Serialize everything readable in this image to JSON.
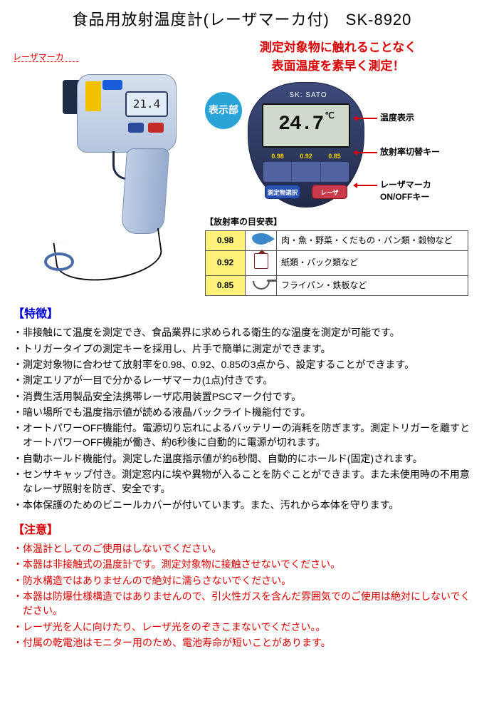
{
  "title": "食品用放射温度計(レーザマーカ付)　SK-8920",
  "laser_label": "レーザマーカ",
  "gun_lcd": "21.4",
  "headline": "測定対象物に触れることなく\n表面温度を素早く測定！",
  "badge": "表示部",
  "brand": "SK: SATO",
  "lcd_value": "24.7",
  "lcd_unit": "℃",
  "em_scale": [
    "0.98",
    "0.92",
    "0.85"
  ],
  "disp_btn_blue": "測定物選択",
  "disp_btn_red": "レーザ",
  "callouts": {
    "c1": "温度表示",
    "c2": "放射率切替キー",
    "c3": "レーザマーカ\nON/OFFキー"
  },
  "etable_title": "【放射率の目安表】",
  "etable_rows": [
    {
      "val": "0.98",
      "desc": "肉・魚・野菜・くだもの・パン類・穀物など"
    },
    {
      "val": "0.92",
      "desc": "紙類・パック類など"
    },
    {
      "val": "0.85",
      "desc": "フライパン・鉄板など"
    }
  ],
  "features_heading": "【特徴】",
  "features": [
    "非接触にて温度を測定でき、食品業界に求められる衛生的な温度を測定が可能です。",
    "トリガータイプの測定キーを採用し、片手で簡単に測定ができます。",
    "測定対象物に合わせて放射率を0.98、0.92、0.85の3点から、設定することができます。",
    "測定エリアが一目で分かるレーザマーカ(1点)付きです。",
    "消費生活用製品安全法携帯レーザ応用装置PSCマーク付です。",
    "暗い場所でも温度指示値が読める液晶バックライト機能付です。",
    "オートパワーOFF機能付。電源切り忘れによるバッテリーの消耗を防ぎます。測定トリガーを離すとオートパワーOFF機能が働き、約6秒後に自動的に電源が切れます。",
    "自動ホールド機能付。測定した温度指示値が約6秒間、自動的にホールド(固定)されます。",
    "センサキャップ付き。測定窓内に埃や異物が入ることを防ぐことができます。また未使用時の不用意なレーザ照射を防ぎ、安全です。",
    "本体保護のためのビニールカバーが付いています。また、汚れから本体を守ります。"
  ],
  "cautions_heading": "【注意】",
  "cautions": [
    "体温計としてのご使用はしないでください。",
    "本器は非接触式の温度計です。測定対象物に接触させないでください。",
    "防水構造ではありませんので絶対に濡らさないでください。",
    "本器は防爆仕様構造ではありませんので、引火性ガスを含んだ雰囲気でのご使用は絶対にしないでください。",
    "レーザ光を人に向けたり、レーザ光をのぞきこまないでください。。",
    "付属の乾電池はモニター用のため、電池寿命が短いことがあります。"
  ],
  "colors": {
    "heading_blue": "#0000d6",
    "warn_red": "#d80000",
    "badge_bg": "#2aa3d6",
    "etable_val_bg": "#fff27a"
  }
}
